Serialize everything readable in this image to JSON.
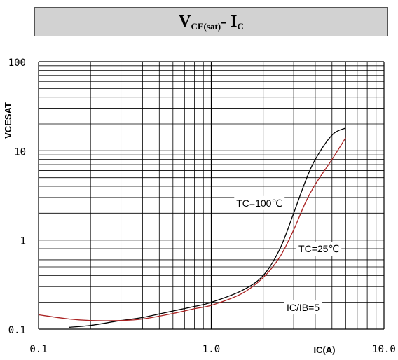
{
  "chart_data": {
    "type": "line",
    "title": "V",
    "title_sub1": "CE(sat)",
    "title_mid": "- I",
    "title_sub2": "C",
    "xlabel": "IC(A)",
    "ylabel": "VCESAT",
    "xscale": "log",
    "yscale": "log",
    "xlim": [
      0.1,
      10.0
    ],
    "ylim": [
      0.1,
      100
    ],
    "grid": true,
    "x_tick_labels": [
      "0.1",
      "1.0",
      "10.0"
    ],
    "y_tick_labels": [
      "100",
      "10",
      "1",
      "0.1"
    ],
    "x_tick_values": [
      0.1,
      1.0,
      10.0
    ],
    "y_tick_values": [
      100,
      10,
      1,
      0.1
    ],
    "series": [
      {
        "name": "TC=100℃",
        "color": "#000000",
        "x": [
          0.15,
          0.2,
          0.3,
          0.4,
          0.6,
          0.8,
          1.0,
          1.5,
          2.0,
          2.5,
          3.0,
          3.5,
          4.0,
          5.0,
          6.0
        ],
        "y": [
          0.105,
          0.11,
          0.125,
          0.135,
          0.16,
          0.18,
          0.2,
          0.27,
          0.4,
          0.8,
          2.0,
          4.5,
          8.0,
          15.0,
          18.0
        ]
      },
      {
        "name": "TC=25℃",
        "color": "#aa2222",
        "x": [
          0.1,
          0.15,
          0.2,
          0.3,
          0.4,
          0.6,
          0.8,
          1.0,
          1.5,
          2.0,
          2.5,
          3.0,
          3.5,
          4.0,
          5.0,
          6.0
        ],
        "y": [
          0.145,
          0.13,
          0.125,
          0.125,
          0.13,
          0.15,
          0.17,
          0.185,
          0.25,
          0.38,
          0.65,
          1.3,
          2.6,
          4.2,
          8.0,
          14.0
        ]
      }
    ],
    "annotations": [
      {
        "text": "TC=100℃",
        "x": 1.9,
        "y": 2.6
      },
      {
        "text": "TC=25℃",
        "x": 4.2,
        "y": 0.8
      },
      {
        "text": "IC/IB=5",
        "x": 3.4,
        "y": 0.175
      }
    ]
  }
}
